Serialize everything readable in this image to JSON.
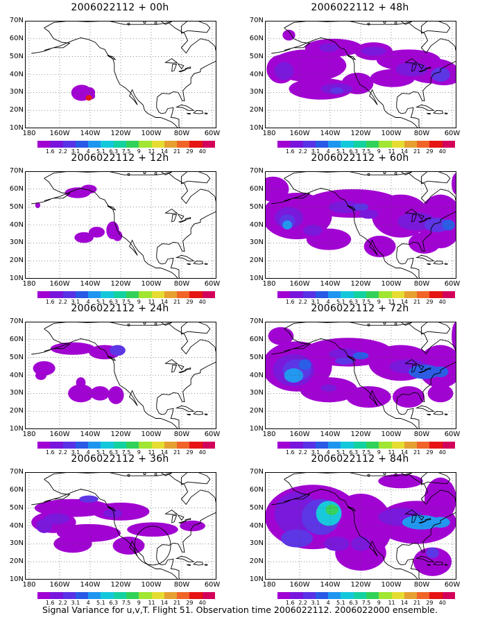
{
  "footer": "Signal Variance for u,v,T. Flight 51. Observation time 2006022112. 2006022000 ensemble.",
  "lat_labels": [
    "70N",
    "60N",
    "50N",
    "40N",
    "30N",
    "20N",
    "10N"
  ],
  "lon_labels": [
    "180",
    "160W",
    "140W",
    "120W",
    "100W",
    "80W",
    "60W"
  ],
  "colorbar": {
    "labels": [
      "1.6",
      "2.2",
      "3.1",
      "4",
      "5.1",
      "6.3",
      "7.5",
      "9",
      "11",
      "14",
      "21",
      "29",
      "40"
    ],
    "colors": [
      "#a000d2",
      "#7814dc",
      "#5a32e6",
      "#285ae6",
      "#1e96f0",
      "#14c8dc",
      "#14d2a0",
      "#32d25a",
      "#a0e632",
      "#e6dc32",
      "#e6a032",
      "#f06428",
      "#e61414",
      "#d2005a"
    ]
  },
  "panels": [
    {
      "title": "2006022112 + 00h"
    },
    {
      "title": "2006022112 + 48h"
    },
    {
      "title": "2006022112 + 12h"
    },
    {
      "title": "2006022112 + 60h"
    },
    {
      "title": "2006022112 + 24h"
    },
    {
      "title": "2006022112 + 72h"
    },
    {
      "title": "2006022112 + 36h"
    },
    {
      "title": "2006022112 + 84h"
    }
  ]
}
